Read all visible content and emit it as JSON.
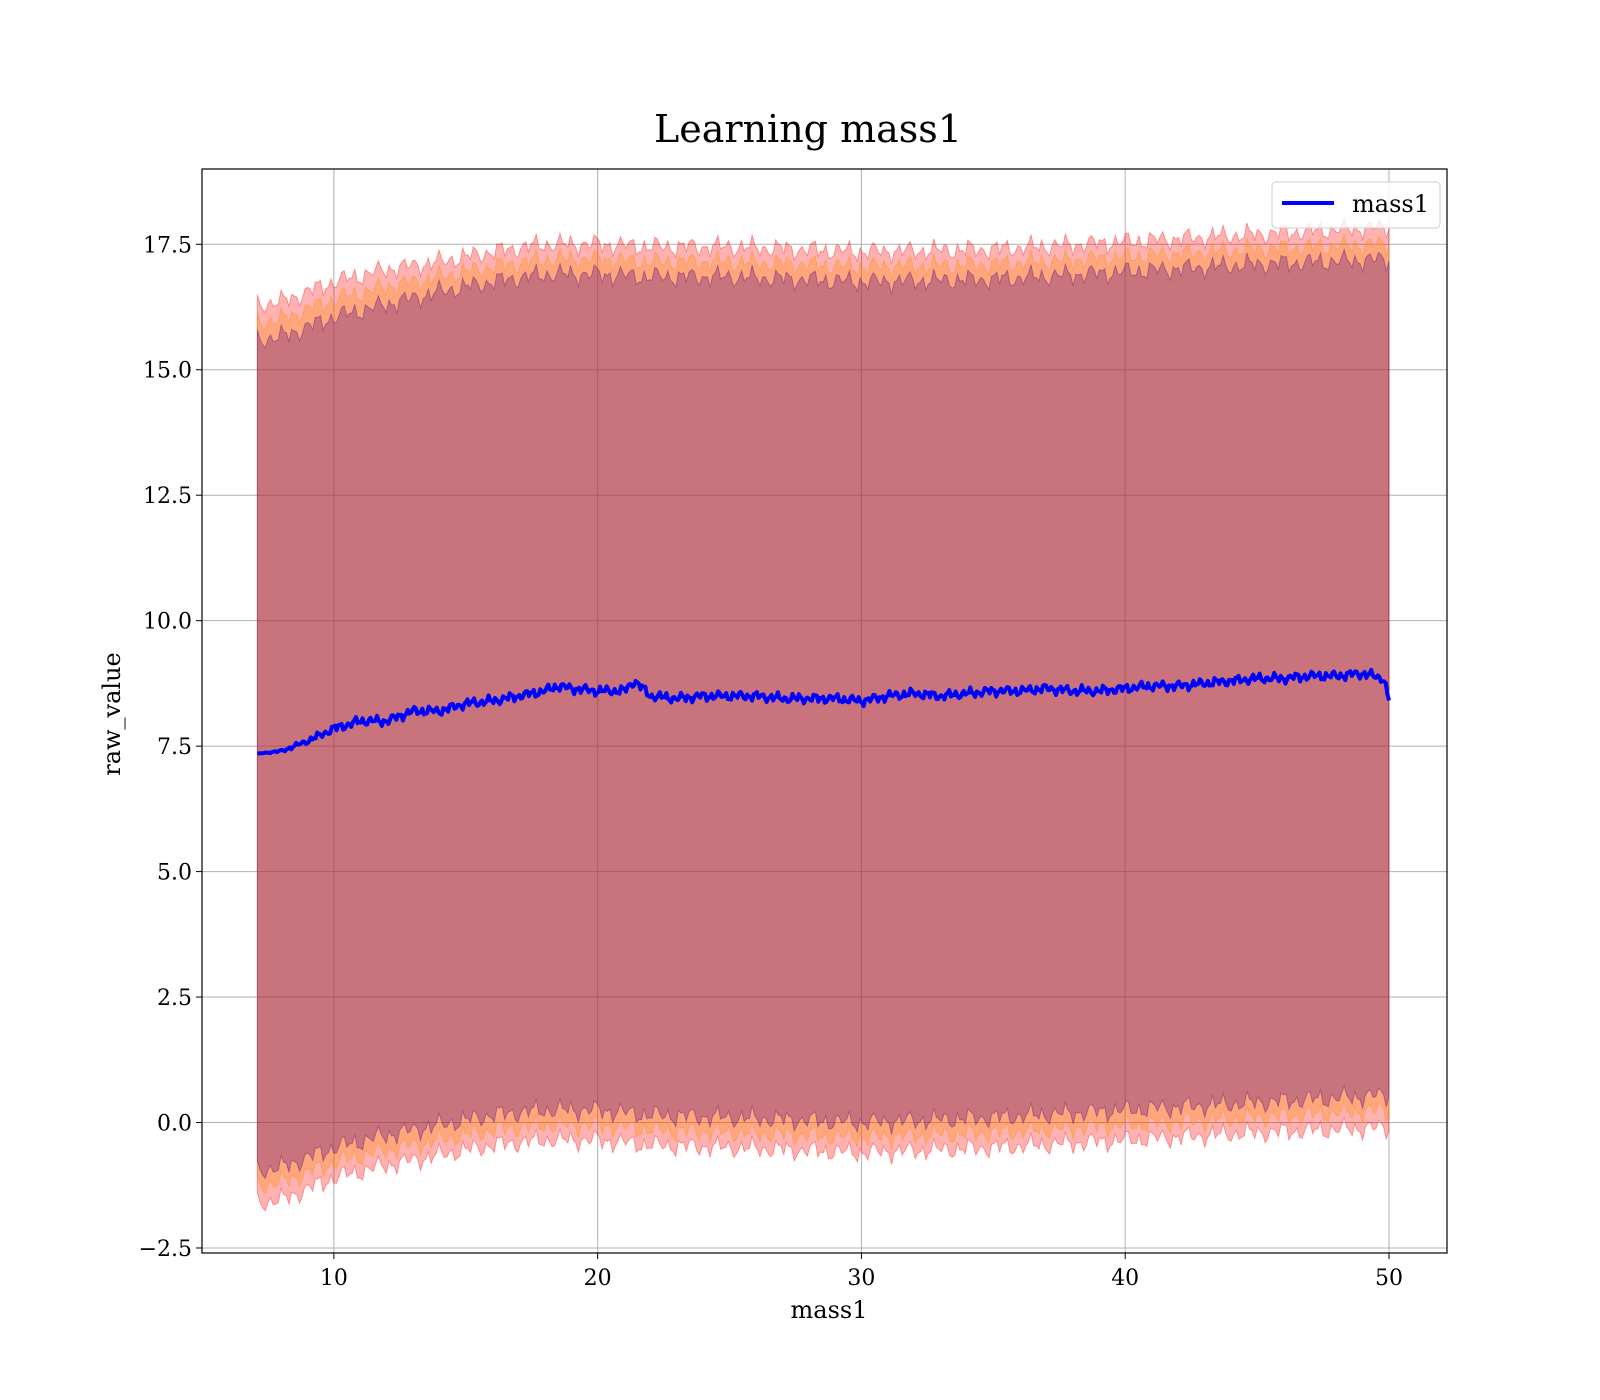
{
  "chart_data": {
    "type": "line",
    "title": "Learning mass1",
    "xlabel": "mass1",
    "ylabel": "raw_value",
    "xlim": [
      5.0,
      52.2
    ],
    "ylim": [
      -2.6,
      19.0
    ],
    "xticks": [
      10,
      20,
      30,
      40,
      50
    ],
    "xtick_labels": [
      "10",
      "20",
      "30",
      "40",
      "50"
    ],
    "yticks": [
      -2.5,
      0.0,
      2.5,
      5.0,
      7.5,
      10.0,
      12.5,
      15.0,
      17.5
    ],
    "ytick_labels": [
      "−2.5",
      "0.0",
      "2.5",
      "5.0",
      "7.5",
      "10.0",
      "12.5",
      "15.0",
      "17.5"
    ],
    "grid": true,
    "legend_position": "top-right",
    "x_range": [
      7.1,
      50.0
    ],
    "series": [
      {
        "name": "mass1",
        "color": "#0000ff",
        "anchors_x": [
          7.1,
          8.0,
          9.0,
          10.0,
          11.0,
          12.0,
          13.0,
          14.0,
          15.0,
          16.0,
          17.0,
          18.0,
          18.5,
          19.0,
          20.0,
          21.0,
          21.4,
          22.0,
          23.0,
          24.0,
          25.0,
          26.0,
          27.0,
          28.0,
          29.0,
          30.0,
          31.0,
          32.0,
          33.0,
          34.0,
          35.0,
          36.0,
          37.0,
          38.0,
          39.0,
          40.0,
          41.0,
          42.0,
          43.0,
          44.0,
          45.0,
          46.0,
          47.0,
          48.0,
          49.0,
          49.8,
          50.0
        ],
        "anchors_y": [
          7.35,
          7.4,
          7.6,
          7.85,
          8.0,
          8.0,
          8.2,
          8.2,
          8.35,
          8.4,
          8.5,
          8.6,
          8.7,
          8.65,
          8.6,
          8.6,
          8.8,
          8.5,
          8.45,
          8.5,
          8.5,
          8.5,
          8.45,
          8.45,
          8.45,
          8.4,
          8.5,
          8.55,
          8.5,
          8.55,
          8.6,
          8.6,
          8.65,
          8.6,
          8.6,
          8.65,
          8.7,
          8.7,
          8.75,
          8.8,
          8.85,
          8.85,
          8.9,
          8.9,
          8.95,
          8.85,
          8.4
        ],
        "noise_amplitude": 0.1
      }
    ],
    "bands": [
      {
        "name": "band-outer",
        "color": "#ff0000",
        "opacity": 0.3,
        "upper_x": [
          7.1,
          8.0,
          10.0,
          12.0,
          14.0,
          16.0,
          18.0,
          20.0,
          22.0,
          25.0,
          30.0,
          35.0,
          40.0,
          45.0,
          50.0
        ],
        "upper_y": [
          16.3,
          16.35,
          16.75,
          17.0,
          17.15,
          17.35,
          17.5,
          17.5,
          17.45,
          17.45,
          17.35,
          17.4,
          17.55,
          17.7,
          17.85
        ],
        "lower_x": [
          7.1,
          8.0,
          10.0,
          12.0,
          14.0,
          16.0,
          18.0,
          20.0,
          22.0,
          25.0,
          30.0,
          35.0,
          40.0,
          45.0,
          50.0
        ],
        "lower_y": [
          -1.6,
          -1.55,
          -1.1,
          -0.85,
          -0.65,
          -0.45,
          -0.35,
          -0.35,
          -0.45,
          -0.5,
          -0.6,
          -0.5,
          -0.35,
          -0.2,
          -0.1
        ]
      },
      {
        "name": "band-middle",
        "color": "#ff8c00",
        "opacity": 0.3,
        "upper_x": [
          7.1,
          8.0,
          10.0,
          12.0,
          14.0,
          16.0,
          18.0,
          20.0,
          22.0,
          25.0,
          30.0,
          35.0,
          40.0,
          45.0,
          50.0
        ],
        "upper_y": [
          15.95,
          16.0,
          16.4,
          16.65,
          16.85,
          17.05,
          17.2,
          17.2,
          17.15,
          17.15,
          17.05,
          17.1,
          17.25,
          17.4,
          17.5
        ],
        "lower_x": [
          7.1,
          8.0,
          10.0,
          12.0,
          14.0,
          16.0,
          18.0,
          20.0,
          22.0,
          25.0,
          30.0,
          35.0,
          40.0,
          45.0,
          50.0
        ],
        "lower_y": [
          -1.25,
          -1.2,
          -0.8,
          -0.55,
          -0.35,
          -0.15,
          -0.05,
          -0.05,
          -0.15,
          -0.2,
          -0.3,
          -0.2,
          -0.05,
          0.1,
          0.25
        ]
      },
      {
        "name": "band-inner",
        "color": "#4b0082",
        "opacity": 0.3,
        "upper_x": [
          7.1,
          8.0,
          10.0,
          12.0,
          14.0,
          16.0,
          18.0,
          20.0,
          22.0,
          25.0,
          30.0,
          35.0,
          40.0,
          45.0,
          50.0
        ],
        "upper_y": [
          15.6,
          15.65,
          16.05,
          16.3,
          16.55,
          16.75,
          16.9,
          16.9,
          16.85,
          16.85,
          16.75,
          16.8,
          16.95,
          17.1,
          17.2
        ],
        "lower_x": [
          7.1,
          8.0,
          10.0,
          12.0,
          14.0,
          16.0,
          18.0,
          20.0,
          22.0,
          25.0,
          30.0,
          35.0,
          40.0,
          45.0,
          50.0
        ],
        "lower_y": [
          -0.95,
          -0.9,
          -0.5,
          -0.25,
          -0.05,
          0.15,
          0.25,
          0.25,
          0.15,
          0.1,
          0.0,
          0.1,
          0.25,
          0.4,
          0.55
        ]
      }
    ]
  },
  "legend": {
    "items": [
      {
        "label": "mass1",
        "color": "#0000ff"
      }
    ]
  }
}
